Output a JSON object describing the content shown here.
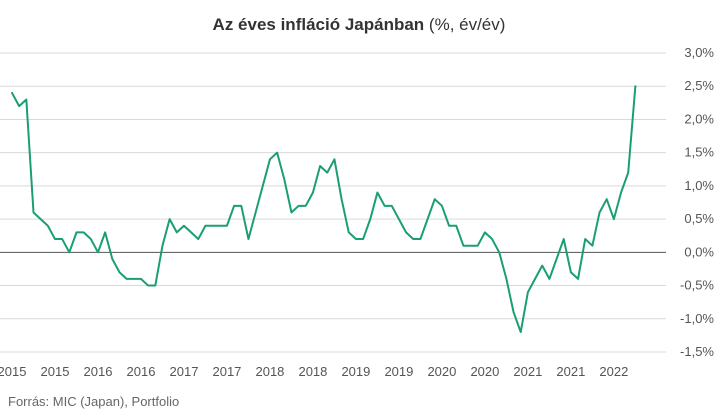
{
  "chart_data": {
    "type": "line",
    "title_bold": "Az éves infláció Japánban",
    "title_unit": " (%, év/év)",
    "source": "Forrás: MIC (Japan), Portfolio",
    "xlabel": "",
    "ylabel": "",
    "ylim": [
      -1.5,
      3.0
    ],
    "yticks": [
      3.0,
      2.5,
      2.0,
      1.5,
      1.0,
      0.5,
      0.0,
      -0.5,
      -1.0,
      -1.5
    ],
    "ytick_labels": [
      "3,0%",
      "2,5%",
      "2,0%",
      "1,5%",
      "1,0%",
      "0,5%",
      "0,0%",
      "-0,5%",
      "-1,0%",
      "-1,5%"
    ],
    "xtick_labels": [
      "2015",
      "2015",
      "2016",
      "2016",
      "2017",
      "2017",
      "2018",
      "2018",
      "2019",
      "2019",
      "2020",
      "2020",
      "2021",
      "2021",
      "2022"
    ],
    "xtick_positions": [
      2015.0,
      2015.5,
      2016.0,
      2016.5,
      2017.0,
      2017.5,
      2018.0,
      2018.5,
      2019.0,
      2019.5,
      2020.0,
      2020.5,
      2021.0,
      2021.5,
      2022.0
    ],
    "x_range": [
      2015.0,
      2022.583
    ],
    "grid": true,
    "legend": "none",
    "colors": {
      "line": "#1a9e74",
      "grid": "#d9d9d9",
      "zero": "#555555"
    },
    "series": [
      {
        "x_start": 2015.0,
        "step_months": 1,
        "values": [
          2.4,
          2.2,
          2.3,
          0.6,
          0.5,
          0.4,
          0.2,
          0.2,
          0.0,
          0.3,
          0.3,
          0.2,
          0.0,
          0.3,
          -0.1,
          -0.3,
          -0.4,
          -0.4,
          -0.4,
          -0.5,
          -0.5,
          0.1,
          0.5,
          0.3,
          0.4,
          0.3,
          0.2,
          0.4,
          0.4,
          0.4,
          0.4,
          0.7,
          0.7,
          0.2,
          0.6,
          1.0,
          1.4,
          1.5,
          1.1,
          0.6,
          0.7,
          0.7,
          0.9,
          1.3,
          1.2,
          1.4,
          0.8,
          0.3,
          0.2,
          0.2,
          0.5,
          0.9,
          0.7,
          0.7,
          0.5,
          0.3,
          0.2,
          0.2,
          0.5,
          0.8,
          0.7,
          0.4,
          0.4,
          0.1,
          0.1,
          0.1,
          0.3,
          0.2,
          0.0,
          -0.4,
          -0.9,
          -1.2,
          -0.6,
          -0.4,
          -0.2,
          -0.4,
          -0.1,
          0.2,
          -0.3,
          -0.4,
          0.2,
          0.1,
          0.6,
          0.8,
          0.5,
          0.9,
          1.2,
          2.5
        ]
      }
    ]
  }
}
